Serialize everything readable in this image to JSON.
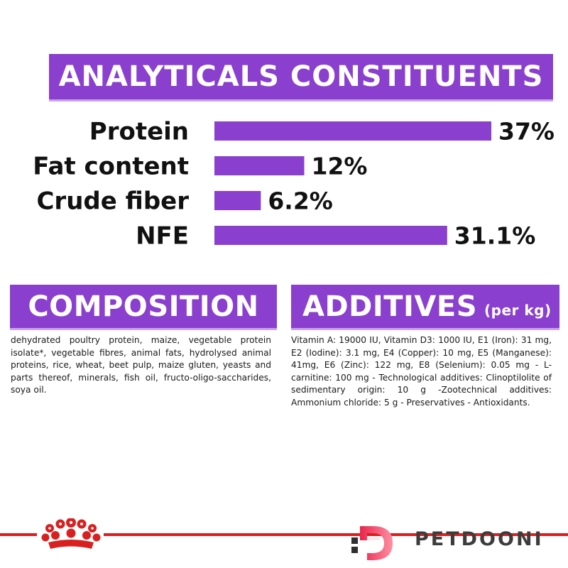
{
  "analytics": {
    "title": "ANALYTICALS CONSTITUENTS"
  },
  "chart_data": {
    "type": "bar",
    "orientation": "horizontal",
    "title": "ANALYTICALS CONSTITUENTS",
    "categories": [
      "Protein",
      "Fat content",
      "Crude fiber",
      "NFE"
    ],
    "values": [
      37,
      12,
      6.2,
      31.1
    ],
    "value_labels": [
      "37%",
      "12%",
      "6.2%",
      "31.1%"
    ],
    "unit": "%",
    "xlim": [
      0,
      37
    ],
    "grid": false,
    "bar_color": "#8a3fce"
  },
  "composition": {
    "title": "COMPOSITION",
    "text": "dehydrated poultry protein, maize, vegetable protein isolate*, vegetable fibres, animal fats, hydrolysed animal proteins, rice, wheat, beet pulp, maize gluten, yeasts and parts thereof, minerals, fish oil, fructo-oligo-saccharides, soya oil."
  },
  "additives": {
    "title": "ADDITIVES",
    "unit": "(per kg)",
    "text": "Vitamin A: 19000 IU, Vitamin D3: 1000 IU, E1 (Iron): 31 mg, E2 (Iodine): 3.1 mg, E4 (Copper): 10 mg, E5 (Manganese): 41mg, E6 (Zinc): 122 mg, E8 (Selenium): 0.05 mg - L- carnitine: 100 mg - Technological additives: Clinoptilolite of sedimentary origin: 10 g -Zootechnical additives: Ammonium chloride: 5 g - Preservatives - Antioxidants."
  },
  "footer": {
    "brand_name": "PETDOONI",
    "crown_icon": "royal-canin-crown-icon",
    "brand_icon": "petdooni-logo-icon",
    "line_color": "#d82020"
  }
}
